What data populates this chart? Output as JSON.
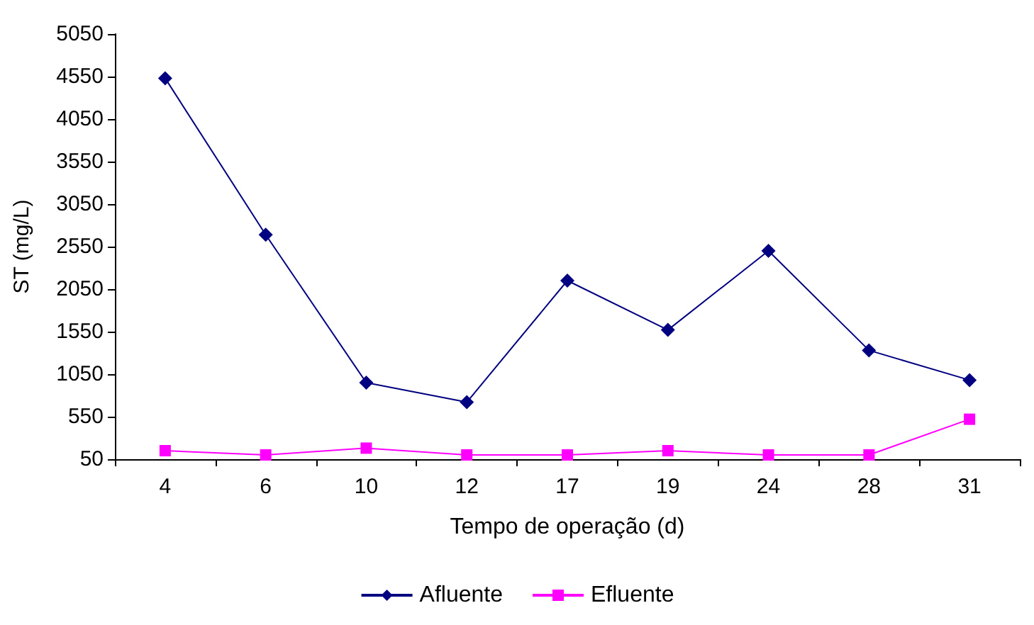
{
  "chart_data": {
    "type": "line",
    "xlabel": "Tempo de operação (d)",
    "ylabel": "ST (mg/L)",
    "categories": [
      "4",
      "6",
      "10",
      "12",
      "17",
      "19",
      "24",
      "28",
      "31"
    ],
    "series": [
      {
        "name": "Afluente",
        "color": "#000080",
        "marker": "diamond",
        "values": [
          4530,
          2690,
          950,
          720,
          2150,
          1570,
          2500,
          1330,
          980
        ]
      },
      {
        "name": "Efluente",
        "color": "#ff00ff",
        "marker": "square",
        "values": [
          150,
          100,
          180,
          100,
          100,
          150,
          100,
          100,
          520
        ]
      }
    ],
    "ylim": [
      50,
      5050
    ],
    "yticks": [
      50,
      550,
      1050,
      1550,
      2050,
      2550,
      3050,
      3550,
      4050,
      4550,
      5050
    ],
    "grid": false,
    "legend": "bottom",
    "line_style": "solid"
  }
}
